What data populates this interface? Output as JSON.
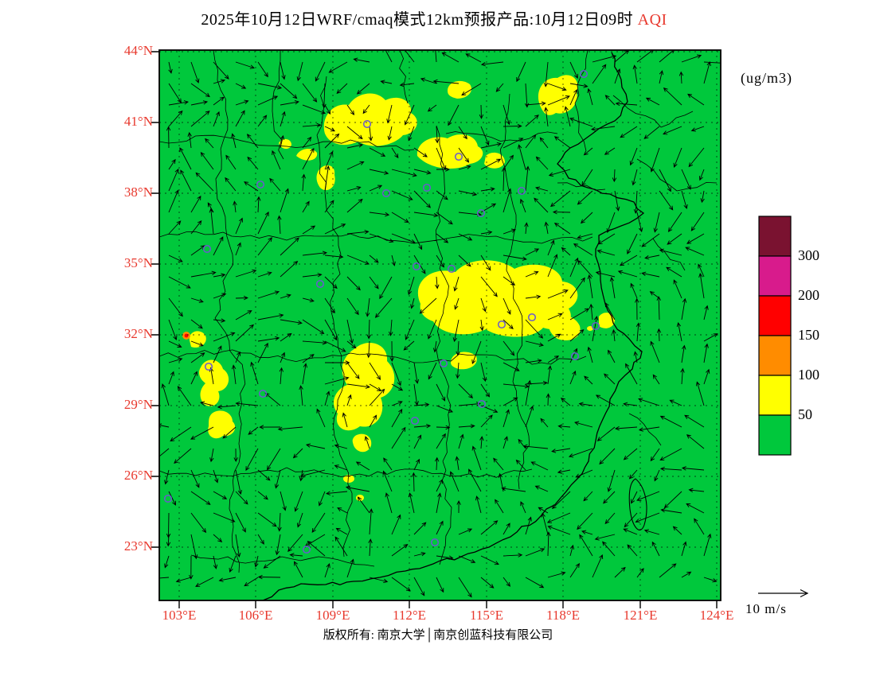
{
  "title": {
    "main": "2025年10月12日WRF/cmaq模式12km预报产品:10月12日09时",
    "highlight": "AQI"
  },
  "units_label": "(ug/m3)",
  "axes": {
    "lat_ticks": [
      "44°N",
      "41°N",
      "38°N",
      "35°N",
      "32°N",
      "29°N",
      "26°N",
      "23°N"
    ],
    "lon_ticks": [
      "103°E",
      "106°E",
      "109°E",
      "112°E",
      "115°E",
      "118°E",
      "121°E",
      "124°E"
    ]
  },
  "legend": {
    "labels": [
      "300",
      "200",
      "150",
      "100",
      "50"
    ],
    "colors": [
      "#7A1230",
      "#D81B8C",
      "#FF0000",
      "#FF8C00",
      "#FFFF00",
      "#00C83C"
    ]
  },
  "wind_scale": {
    "label": "10 m/s"
  },
  "footer": {
    "text": "版权所有: 南京大学│南京创蓝科技有限公司"
  },
  "colors": {
    "map_green": "#00C83C",
    "patch_yellow": "#FFFF00",
    "spot_orange": "#FF8C00",
    "spot_red": "#FF0000",
    "city_marker": "#6A5ACD",
    "label_red": "#E8392E",
    "wind_arrow": "#000000"
  }
}
